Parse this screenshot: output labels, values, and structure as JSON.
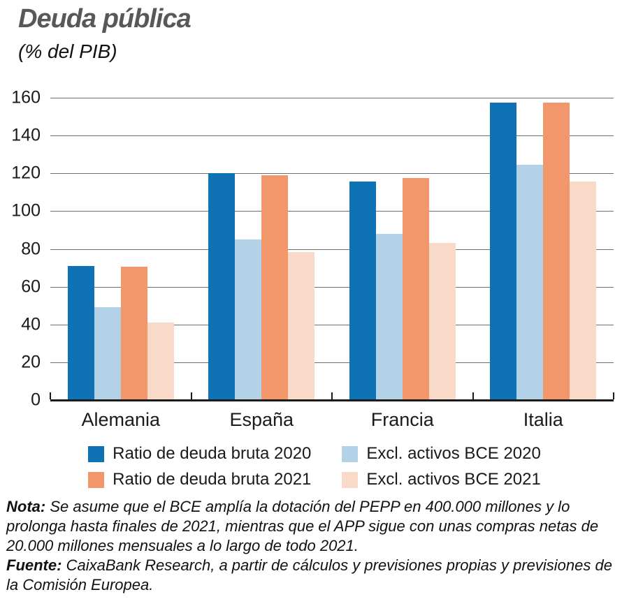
{
  "chart_data": {
    "type": "bar",
    "title": "Deuda pública",
    "subtitle": "(% del PIB)",
    "categories": [
      "Alemania",
      "España",
      "Francia",
      "Italia"
    ],
    "series": [
      {
        "name": "Ratio de deuda bruta 2020",
        "color": "#0e72b5",
        "values": [
          71,
          120,
          115.5,
          157.5
        ]
      },
      {
        "name": "Excl. activos BCE 2020",
        "color": "#b4d2e7",
        "values": [
          49,
          85,
          88,
          124.5
        ]
      },
      {
        "name": "Ratio de deuda bruta 2021",
        "color": "#f2976c",
        "values": [
          70.5,
          119,
          117.5,
          157.5
        ]
      },
      {
        "name": "Excl. activos BCE 2021",
        "color": "#f9d9c8",
        "values": [
          41,
          78.5,
          83,
          115.5
        ]
      }
    ],
    "xlabel": "",
    "ylabel": "",
    "ylim": [
      0,
      160
    ],
    "y_ticks": [
      0,
      20,
      40,
      60,
      80,
      100,
      120,
      140,
      160
    ],
    "grid": "horizontal",
    "legend_position": "bottom"
  },
  "notes": {
    "nota_label": "Nota:",
    "nota_text": "Se asume que el BCE amplía la dotación del PEPP en 400.000 millones y lo prolonga hasta finales de 2021, mientras que el APP sigue con unas compras netas de 20.000 millones mensuales a lo largo de todo 2021.",
    "fuente_label": "Fuente:",
    "fuente_text": "CaixaBank Research, a partir de cálculos y previsiones propias y previsiones de la Comisión Europea."
  },
  "colors": {
    "title_gray": "#58585a",
    "gridline": "#6d6e71",
    "axis_black": "#1a1a1a"
  }
}
